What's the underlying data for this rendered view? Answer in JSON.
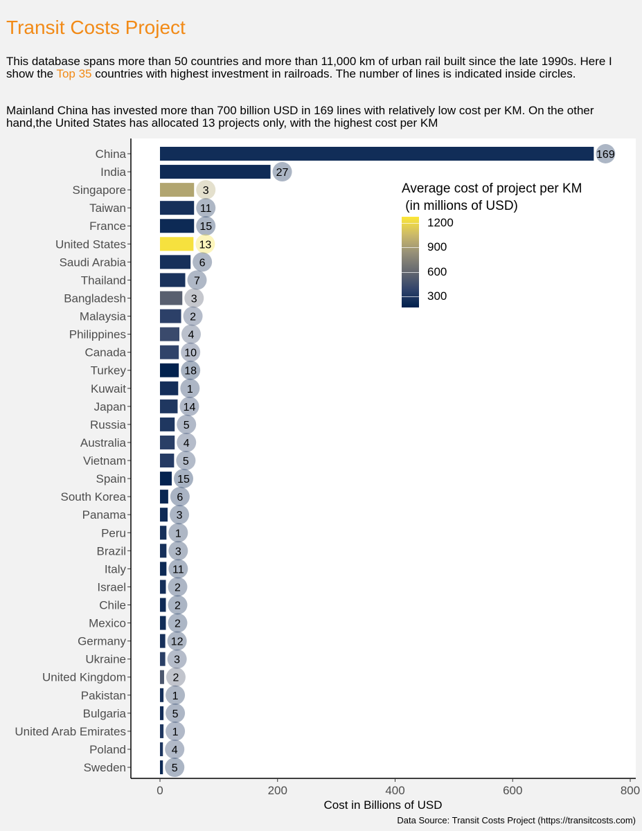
{
  "header": {
    "title": "Transit Costs Project",
    "p1_before": "This database spans more than 50 countries and more than 11,000 km of urban rail built since the late 1990s. Here I show the ",
    "p1_highlight": "Top 35",
    "p1_after": "  countries with highest investment in railroads. The number of lines is indicated inside circles.",
    "p2": "Mainland China has invested more than 700 billion USD in 169 lines with relatively low cost per KM. On the other hand,the United States has allocated 13 projects only, with the highest cost per KM"
  },
  "legend": {
    "title": "Average cost of project per KM\n (in millions of USD)",
    "ticks": [
      {
        "value": 1200,
        "label": "1200"
      },
      {
        "value": 900,
        "label": "900"
      },
      {
        "value": 600,
        "label": "600"
      },
      {
        "value": 300,
        "label": "300"
      }
    ],
    "range": [
      160,
      1280
    ]
  },
  "source": "Data Source:  Transit Costs Project (https://transitcosts.com)",
  "chart_data": {
    "type": "bar",
    "orientation": "horizontal",
    "xlabel": "Cost in Billions of USD",
    "ylabel": "",
    "xlim": [
      -50,
      810
    ],
    "xticks": [
      0,
      200,
      400,
      600,
      800
    ],
    "grid": false,
    "color_scale": "cividis",
    "categories": [
      "China",
      "India",
      "Singapore",
      "Taiwan",
      "France",
      "United States",
      "Saudi Arabia",
      "Thailand",
      "Bangladesh",
      "Malaysia",
      "Philippines",
      "Canada",
      "Turkey",
      "Kuwait",
      "Japan",
      "Russia",
      "Australia",
      "Vietnam",
      "Spain",
      "South Korea",
      "Panama",
      "Peru",
      "Brazil",
      "Italy",
      "Israel",
      "Chile",
      "Mexico",
      "Germany",
      "Ukraine",
      "United Kingdom",
      "Pakistan",
      "Bulgaria",
      "United Arab Emirates",
      "Poland",
      "Sweden"
    ],
    "values": [
      738,
      188,
      58,
      58,
      58,
      57,
      52,
      43,
      38,
      36,
      33,
      32,
      32,
      31,
      30,
      25,
      25,
      24,
      20,
      14,
      13,
      11,
      11,
      11,
      10,
      10,
      10,
      9,
      9,
      7,
      6,
      6,
      6,
      5,
      5
    ],
    "lines": [
      169,
      27,
      3,
      11,
      15,
      13,
      6,
      7,
      3,
      2,
      4,
      10,
      18,
      1,
      14,
      5,
      4,
      5,
      15,
      6,
      3,
      1,
      3,
      11,
      2,
      2,
      2,
      12,
      3,
      2,
      1,
      5,
      1,
      4,
      5
    ],
    "cost_per_km": [
      240,
      230,
      950,
      260,
      220,
      1250,
      260,
      280,
      550,
      360,
      420,
      380,
      170,
      250,
      300,
      300,
      350,
      330,
      180,
      200,
      230,
      260,
      260,
      220,
      250,
      230,
      240,
      260,
      350,
      500,
      260,
      250,
      300,
      300,
      220
    ]
  }
}
